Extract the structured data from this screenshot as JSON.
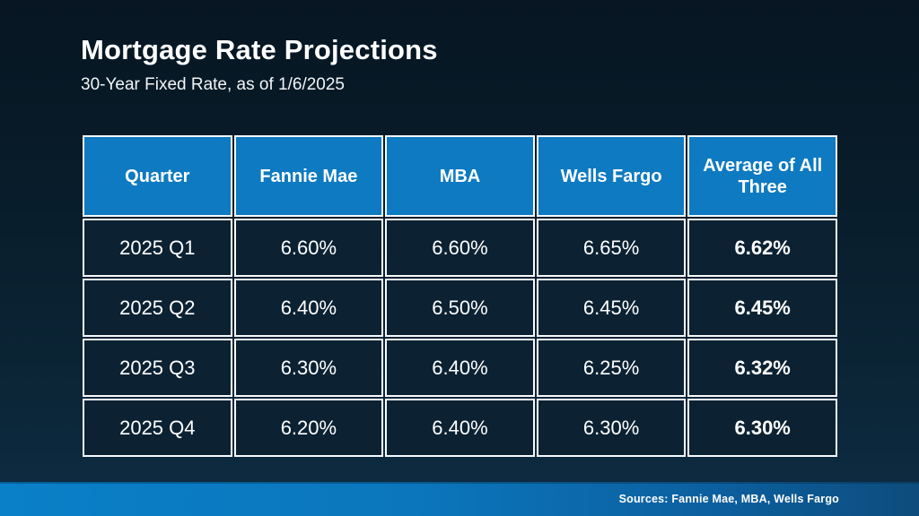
{
  "slide": {
    "title": "Mortgage Rate Projections",
    "subtitle": "30-Year Fixed Rate, as of 1/6/2025"
  },
  "table": {
    "headers": [
      "Quarter",
      "Fannie Mae",
      "MBA",
      "Wells Fargo",
      "Average of All Three"
    ],
    "rows": [
      {
        "cells": [
          "2025 Q1",
          "6.60%",
          "6.60%",
          "6.65%",
          "6.62%"
        ]
      },
      {
        "cells": [
          "2025 Q2",
          "6.40%",
          "6.50%",
          "6.45%",
          "6.45%"
        ]
      },
      {
        "cells": [
          "2025 Q3",
          "6.30%",
          "6.40%",
          "6.25%",
          "6.32%"
        ]
      },
      {
        "cells": [
          "2025 Q4",
          "6.20%",
          "6.40%",
          "6.30%",
          "6.30%"
        ]
      }
    ]
  },
  "footer": {
    "sources": "Sources: Fannie Mae, MBA, Wells Fargo"
  },
  "colors": {
    "background_top": "#071622",
    "background_bottom": "#0e2c43",
    "header_blue": "#0e7ac1",
    "cell_navy": "#0c2233",
    "grid_white": "#f7fafc",
    "bar_gradient_left": "#0a80c8",
    "bar_gradient_right": "#0d4c7c",
    "text_white": "#ffffff"
  }
}
